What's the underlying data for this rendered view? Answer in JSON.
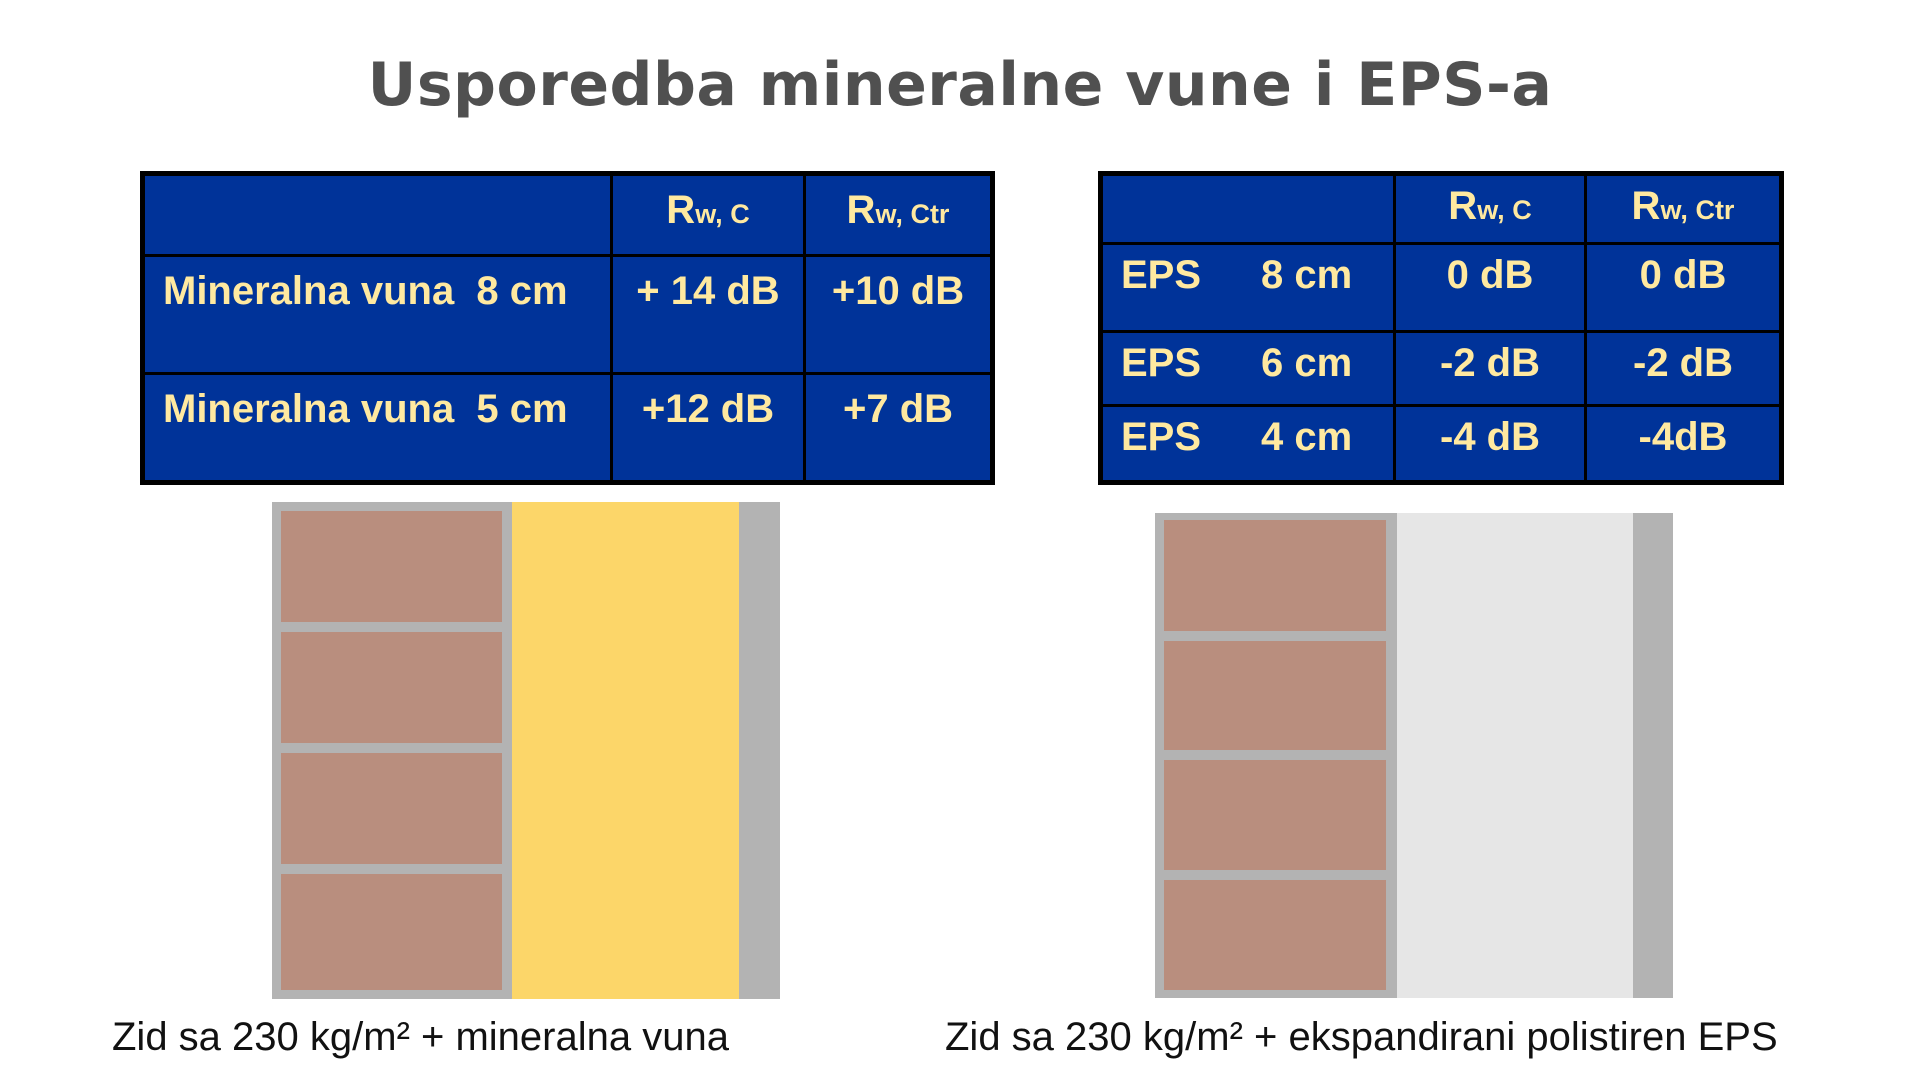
{
  "title": "Usporedba mineralne vune i EPS-a",
  "table_left": {
    "header": [
      {
        "main": "R",
        "sub": "w, C"
      },
      {
        "main": "R",
        "sub": "w, Ctr"
      }
    ],
    "rows": [
      {
        "label": "Mineralna vuna  8 cm",
        "rwc": "+ 14 dB",
        "rwctr": "+10 dB"
      },
      {
        "label": "Mineralna vuna  5 cm",
        "rwc": "+12 dB",
        "rwctr": "+7 dB"
      }
    ]
  },
  "table_right": {
    "header": [
      {
        "main": "R",
        "sub": "w, C"
      },
      {
        "main": "R",
        "sub": "w, Ctr"
      }
    ],
    "rows": [
      {
        "label": "EPS",
        "thickness": "8 cm",
        "rwc": "0 dB",
        "rwctr": "0 dB"
      },
      {
        "label": "EPS",
        "thickness": "6 cm",
        "rwc": "-2 dB",
        "rwctr": "-2 dB"
      },
      {
        "label": "EPS",
        "thickness": "4 cm",
        "rwc": "-4 dB",
        "rwctr": "-4dB"
      }
    ]
  },
  "captions": {
    "left": "Zid sa 230 kg/m² + mineralna vuna",
    "right": "Zid sa 230 kg/m² + ekspandirani polistiren EPS"
  },
  "colors": {
    "table_bg": "#003399",
    "table_text": "#ffe9a0",
    "brick": "#b98e7e",
    "mortar": "#b3b3b3",
    "mineral_wool": "#fcd669",
    "eps": "#e6e6e6",
    "plaster": "#b3b3b3"
  }
}
